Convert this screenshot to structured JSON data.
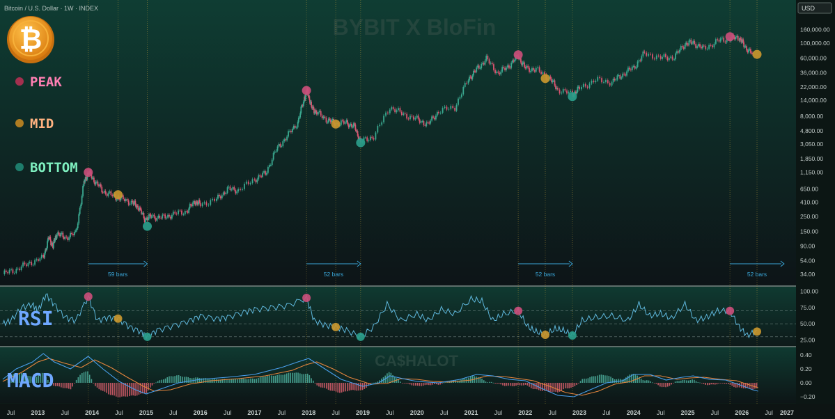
{
  "header": {
    "symbol": "Bitcoin / U.S. Dollar · 1W · INDEX",
    "currency_badge": "USD"
  },
  "watermarks": {
    "top": "BYBIT X BloFin",
    "middle": "CA$HALOT"
  },
  "legend": {
    "items": [
      {
        "label": "PEAK",
        "dot_color": "#a3304f",
        "text_color": "#ff7fb3"
      },
      {
        "label": "MID",
        "dot_color": "#b07d22",
        "text_color": "#ffb280"
      },
      {
        "label": "BOTTOM",
        "dot_color": "#1e7d6c",
        "text_color": "#7ff0c0"
      }
    ]
  },
  "panel_labels": {
    "rsi": "RSI",
    "macd": "MACD"
  },
  "colors": {
    "peak": "#c94e79",
    "mid": "#c8962e",
    "bottom": "#2a9d8a",
    "up": "#3aa88f",
    "down": "#d9536f",
    "rsi": "#5fb8dd",
    "macd_line": "#4aa0ee",
    "signal_line": "#e6853d",
    "bars_arrow": "#3aa7d9"
  },
  "chart_data": [
    {
      "type": "line",
      "title": "Bitcoin / U.S. Dollar · 1W · INDEX",
      "yscale": "log",
      "ylim": [
        28,
        170000
      ],
      "xlim": [
        2012.3,
        2027.0
      ],
      "y_tick_labels": [
        "160,000.00",
        "100,000.00",
        "60,000.00",
        "36,000.00",
        "22,000.00",
        "14,000.00",
        "8,000.00",
        "4,800.00",
        "3,050.00",
        "1,850.00",
        "1,150.00",
        "650.00",
        "410.00",
        "250.00",
        "150.00",
        "90.00",
        "54.00",
        "34.00"
      ],
      "y_ticks": [
        160000,
        100000,
        60000,
        36000,
        22000,
        14000,
        8000,
        4800,
        3050,
        1850,
        1150,
        650,
        410,
        250,
        150,
        90,
        54,
        34
      ],
      "x_tick_labels": [
        "Jul",
        "2013",
        "Jul",
        "2014",
        "Jul",
        "2015",
        "Jul",
        "2016",
        "Jul",
        "2017",
        "Jul",
        "2018",
        "Jul",
        "2019",
        "Jul",
        "2020",
        "Jul",
        "2021",
        "Jul",
        "2022",
        "Jul",
        "2023",
        "Jul",
        "2024",
        "Jul",
        "2025",
        "Jul",
        "2026",
        "Jul",
        "2027"
      ],
      "x_ticks": [
        2012.5,
        2013.0,
        2013.5,
        2014.0,
        2014.5,
        2015.0,
        2015.5,
        2016.0,
        2016.5,
        2017.0,
        2017.5,
        2018.0,
        2018.5,
        2019.0,
        2019.5,
        2020.0,
        2020.5,
        2021.0,
        2021.5,
        2022.0,
        2022.5,
        2023.0,
        2023.5,
        2024.0,
        2024.5,
        2025.0,
        2025.5,
        2026.0,
        2026.5,
        2027.0
      ],
      "series": [
        {
          "x": [
            2012.35,
            2012.6,
            2012.85,
            2013.1,
            2013.2,
            2013.28,
            2013.35,
            2013.5,
            2013.7,
            2013.85,
            2013.93,
            2014.05,
            2014.2,
            2014.4,
            2014.55,
            2014.75,
            2014.85,
            2014.97,
            2015.1,
            2015.3,
            2015.5,
            2015.75,
            2015.9,
            2016.0,
            2016.3,
            2016.5,
            2016.7,
            2017.0,
            2017.2,
            2017.4,
            2017.6,
            2017.8,
            2017.92,
            2017.98,
            2018.05,
            2018.15,
            2018.35,
            2018.5,
            2018.7,
            2018.85,
            2018.96,
            2019.2,
            2019.5,
            2019.75,
            2020.0,
            2020.2,
            2020.4,
            2020.7,
            2020.95,
            2021.1,
            2021.28,
            2021.5,
            2021.7,
            2021.87,
            2022.0,
            2022.2,
            2022.45,
            2022.6,
            2022.87,
            2023.0,
            2023.3,
            2023.6,
            2023.8,
            2024.0,
            2024.2,
            2024.5,
            2024.75,
            2024.95,
            2025.1,
            2025.3,
            2025.55,
            2025.78,
            2025.95,
            2026.05,
            2026.2
          ],
          "y": [
            34,
            40,
            50,
            60,
            120,
            90,
            140,
            120,
            140,
            800,
            1150,
            850,
            600,
            500,
            460,
            400,
            350,
            230,
            250,
            240,
            270,
            300,
            420,
            380,
            450,
            640,
            620,
            900,
            1100,
            2500,
            4000,
            6500,
            15000,
            19000,
            11000,
            9000,
            7000,
            6200,
            6400,
            5500,
            3300,
            4000,
            11000,
            8500,
            7200,
            6000,
            9500,
            11000,
            29000,
            40000,
            58000,
            35000,
            46000,
            64000,
            42000,
            40000,
            30000,
            20000,
            17000,
            21000,
            28000,
            26000,
            34000,
            43000,
            70000,
            60000,
            62000,
            98000,
            102000,
            82000,
            108000,
            117000,
            122000,
            90000,
            68000
          ]
        }
      ],
      "markers": [
        {
          "kind": "peak",
          "x": 2013.93,
          "y": 1150
        },
        {
          "kind": "mid",
          "x": 2014.48,
          "y": 530
        },
        {
          "kind": "bottom",
          "x": 2015.02,
          "y": 178
        },
        {
          "kind": "peak",
          "x": 2017.96,
          "y": 19500
        },
        {
          "kind": "mid",
          "x": 2018.5,
          "y": 6100
        },
        {
          "kind": "bottom",
          "x": 2018.96,
          "y": 3200
        },
        {
          "kind": "peak",
          "x": 2021.87,
          "y": 67000
        },
        {
          "kind": "mid",
          "x": 2022.37,
          "y": 29500
        },
        {
          "kind": "bottom",
          "x": 2022.87,
          "y": 15800
        },
        {
          "kind": "peak",
          "x": 2025.78,
          "y": 125000
        },
        {
          "kind": "mid",
          "x": 2026.28,
          "y": 68000
        }
      ],
      "bars_annotations": [
        {
          "label": "59 bars",
          "x_start": 2013.93,
          "x_end": 2015.02
        },
        {
          "label": "52 bars",
          "x_start": 2017.96,
          "x_end": 2018.96
        },
        {
          "label": "52 bars",
          "x_start": 2021.87,
          "x_end": 2022.87
        },
        {
          "label": "52 bars",
          "x_start": 2025.78,
          "x_end": 2026.78
        }
      ],
      "vertical_lines": [
        2013.93,
        2014.48,
        2015.02,
        2017.96,
        2018.5,
        2018.96,
        2021.87,
        2022.37,
        2022.87,
        2025.78,
        2026.28
      ]
    },
    {
      "type": "line",
      "title": "RSI",
      "ylim": [
        18,
        105
      ],
      "y_tick_labels": [
        "100.00",
        "75.00",
        "50.00",
        "25.00"
      ],
      "y_ticks": [
        100,
        75,
        50,
        25
      ],
      "series": [
        {
          "x": [
            2012.35,
            2012.5,
            2012.7,
            2012.9,
            2013.0,
            2013.15,
            2013.3,
            2013.5,
            2013.7,
            2013.93,
            2014.1,
            2014.3,
            2014.48,
            2014.7,
            2014.9,
            2015.02,
            2015.2,
            2015.5,
            2015.8,
            2016.0,
            2016.3,
            2016.5,
            2016.8,
            2017.0,
            2017.3,
            2017.6,
            2017.96,
            2018.1,
            2018.3,
            2018.5,
            2018.7,
            2018.96,
            2019.2,
            2019.45,
            2019.7,
            2020.0,
            2020.2,
            2020.45,
            2020.7,
            2021.0,
            2021.2,
            2021.4,
            2021.6,
            2021.87,
            2022.05,
            2022.2,
            2022.37,
            2022.55,
            2022.7,
            2022.87,
            2023.05,
            2023.3,
            2023.6,
            2023.9,
            2024.1,
            2024.3,
            2024.5,
            2024.7,
            2024.95,
            2025.15,
            2025.35,
            2025.55,
            2025.78,
            2025.95,
            2026.1,
            2026.28
          ],
          "y": [
            50,
            55,
            75,
            80,
            70,
            95,
            80,
            60,
            55,
            92,
            55,
            60,
            58,
            45,
            38,
            30,
            40,
            47,
            55,
            62,
            58,
            60,
            68,
            72,
            75,
            78,
            90,
            55,
            48,
            45,
            40,
            30,
            45,
            80,
            55,
            65,
            55,
            72,
            65,
            88,
            85,
            55,
            65,
            70,
            45,
            38,
            33,
            42,
            40,
            32,
            55,
            60,
            62,
            55,
            80,
            62,
            66,
            58,
            80,
            55,
            60,
            70,
            70,
            45,
            32,
            40
          ]
        }
      ],
      "reference_lines": [
        70,
        50,
        30
      ],
      "markers": [
        {
          "kind": "peak",
          "x": 2013.93,
          "y": 92
        },
        {
          "kind": "mid",
          "x": 2014.48,
          "y": 58
        },
        {
          "kind": "bottom",
          "x": 2015.02,
          "y": 30
        },
        {
          "kind": "peak",
          "x": 2017.96,
          "y": 90
        },
        {
          "kind": "mid",
          "x": 2018.5,
          "y": 45
        },
        {
          "kind": "bottom",
          "x": 2018.96,
          "y": 30
        },
        {
          "kind": "peak",
          "x": 2021.87,
          "y": 70
        },
        {
          "kind": "mid",
          "x": 2022.37,
          "y": 33
        },
        {
          "kind": "bottom",
          "x": 2022.87,
          "y": 32
        },
        {
          "kind": "peak",
          "x": 2025.78,
          "y": 70
        },
        {
          "kind": "mid",
          "x": 2026.28,
          "y": 38
        }
      ]
    },
    {
      "type": "line",
      "title": "MACD",
      "ylim": [
        -0.28,
        0.48
      ],
      "y_tick_labels": [
        "0.40",
        "0.20",
        "0.00",
        "−0.20"
      ],
      "y_ticks": [
        0.4,
        0.2,
        0.0,
        -0.2
      ],
      "series": [
        {
          "name": "macd",
          "x": [
            2012.35,
            2012.6,
            2012.9,
            2013.1,
            2013.3,
            2013.6,
            2013.93,
            2014.2,
            2014.5,
            2014.8,
            2015.0,
            2015.3,
            2015.6,
            2016.0,
            2016.5,
            2017.0,
            2017.5,
            2017.8,
            2018.0,
            2018.3,
            2018.6,
            2019.0,
            2019.3,
            2019.5,
            2019.8,
            2020.0,
            2020.4,
            2020.8,
            2021.1,
            2021.4,
            2021.7,
            2022.0,
            2022.3,
            2022.6,
            2022.9,
            2023.2,
            2023.5,
            2023.8,
            2024.0,
            2024.3,
            2024.6,
            2024.9,
            2025.1,
            2025.4,
            2025.7,
            2026.0,
            2026.2,
            2026.3
          ],
          "y": [
            0.05,
            0.2,
            0.3,
            0.42,
            0.3,
            0.2,
            0.38,
            0.2,
            0.02,
            -0.1,
            -0.16,
            -0.08,
            0.0,
            0.05,
            0.08,
            0.12,
            0.22,
            0.3,
            0.35,
            0.2,
            0.05,
            -0.05,
            0.0,
            0.1,
            0.05,
            0.02,
            0.0,
            0.05,
            0.12,
            0.1,
            0.05,
            0.03,
            -0.08,
            -0.18,
            -0.2,
            -0.1,
            0.0,
            0.03,
            0.12,
            0.12,
            0.04,
            0.08,
            0.1,
            0.05,
            0.04,
            -0.04,
            -0.1,
            -0.12
          ]
        },
        {
          "name": "signal",
          "x": [
            2012.35,
            2012.7,
            2013.0,
            2013.2,
            2013.5,
            2013.8,
            2014.05,
            2014.35,
            2014.65,
            2014.95,
            2015.15,
            2015.45,
            2015.8,
            2016.2,
            2016.7,
            2017.2,
            2017.7,
            2017.95,
            2018.15,
            2018.45,
            2018.75,
            2019.15,
            2019.45,
            2019.7,
            2020.0,
            2020.3,
            2020.6,
            2021.0,
            2021.3,
            2021.6,
            2021.9,
            2022.15,
            2022.45,
            2022.75,
            2023.05,
            2023.35,
            2023.65,
            2023.95,
            2024.2,
            2024.5,
            2024.8,
            2025.05,
            2025.3,
            2025.6,
            2025.9,
            2026.1,
            2026.3
          ],
          "y": [
            0.02,
            0.15,
            0.3,
            0.35,
            0.28,
            0.22,
            0.33,
            0.22,
            0.08,
            -0.05,
            -0.12,
            -0.1,
            -0.02,
            0.03,
            0.06,
            0.1,
            0.18,
            0.26,
            0.3,
            0.2,
            0.08,
            -0.02,
            -0.01,
            0.06,
            0.05,
            0.02,
            0.01,
            0.04,
            0.1,
            0.09,
            0.06,
            0.03,
            -0.05,
            -0.14,
            -0.18,
            -0.12,
            -0.02,
            0.02,
            0.1,
            0.1,
            0.05,
            0.07,
            0.08,
            0.05,
            0.03,
            -0.02,
            -0.07
          ]
        }
      ]
    }
  ]
}
